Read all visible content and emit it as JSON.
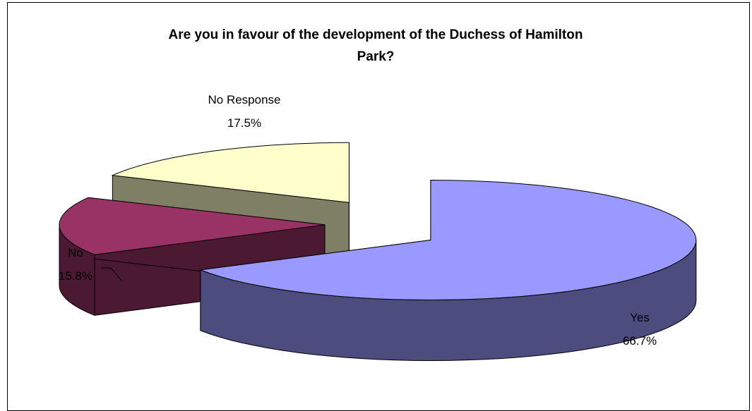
{
  "chart_data": {
    "type": "pie",
    "title": "Are you in favour of the development of the Duchess of Hamilton Park?",
    "title_lines": [
      "Are you in favour of the development of the Duchess of Hamilton",
      "Park?"
    ],
    "categories": [
      "Yes",
      "No",
      "No Response"
    ],
    "values": [
      66.7,
      15.8,
      17.5
    ],
    "value_labels": [
      "66.7%",
      "15.8%",
      "17.5%"
    ],
    "colors": {
      "Yes": {
        "top": "#9999ff",
        "side": "#4c4c7f"
      },
      "No": {
        "top": "#993366",
        "side": "#4c1933"
      },
      "No Response": {
        "top": "#ffffcc",
        "side": "#7f7f66"
      }
    },
    "style": "3d-exploded",
    "legend": "none"
  }
}
